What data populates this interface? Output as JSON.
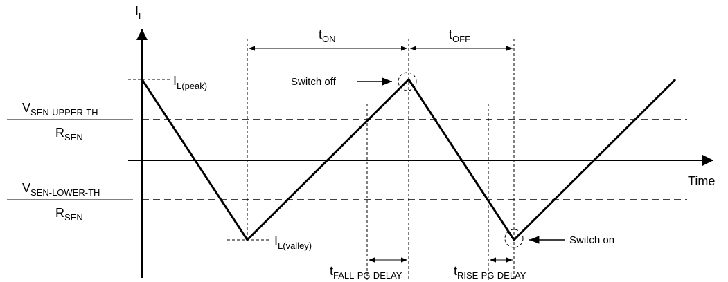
{
  "axes": {
    "y_label": {
      "main": "I",
      "sub": "L"
    },
    "x_label": "Time"
  },
  "thresholds": [
    {
      "numerator": {
        "main": "V",
        "sub": "SEN-UPPER-TH"
      },
      "denominator": {
        "main": "R",
        "sub": "SEN"
      }
    },
    {
      "numerator": {
        "main": "V",
        "sub": "SEN-LOWER-TH"
      },
      "denominator": {
        "main": "R",
        "sub": "SEN"
      }
    }
  ],
  "annotations": {
    "peak": {
      "main": "I",
      "sub": "L(peak)"
    },
    "valley": {
      "main": "I",
      "sub": "L(valley)"
    },
    "t_on": {
      "main": "t",
      "sub": "ON"
    },
    "t_off": {
      "main": "t",
      "sub": "OFF"
    },
    "switch_off": "Switch off",
    "switch_on": "Switch on",
    "fall_delay": {
      "main": "t",
      "sub": "FALL-PG-DELAY"
    },
    "rise_delay": {
      "main": "t",
      "sub": "RISE-PG-DELAY"
    }
  }
}
